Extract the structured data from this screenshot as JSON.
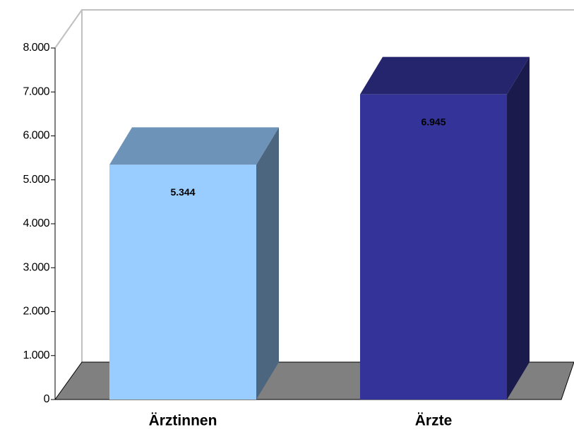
{
  "chart_data": {
    "type": "bar3d",
    "categories": [
      "Ärztinnen",
      "Ärzte"
    ],
    "values": [
      5344,
      6945
    ],
    "value_labels": [
      "5.344",
      "6.945"
    ],
    "colors": [
      "#99ccff",
      "#333399"
    ],
    "ylim": [
      0,
      8000
    ],
    "yticks": [
      0,
      {
        "value": 1000,
        "label": "1.000"
      },
      {
        "value": 2000,
        "label": "2.000"
      },
      {
        "value": 3000,
        "label": "3.000"
      },
      {
        "value": 4000,
        "label": "4.000"
      },
      {
        "value": 5000,
        "label": "5.000"
      },
      {
        "value": 6000,
        "label": "6.000"
      },
      {
        "value": 7000,
        "label": "7.000"
      },
      {
        "value": 8000,
        "label": "8.000"
      }
    ]
  }
}
